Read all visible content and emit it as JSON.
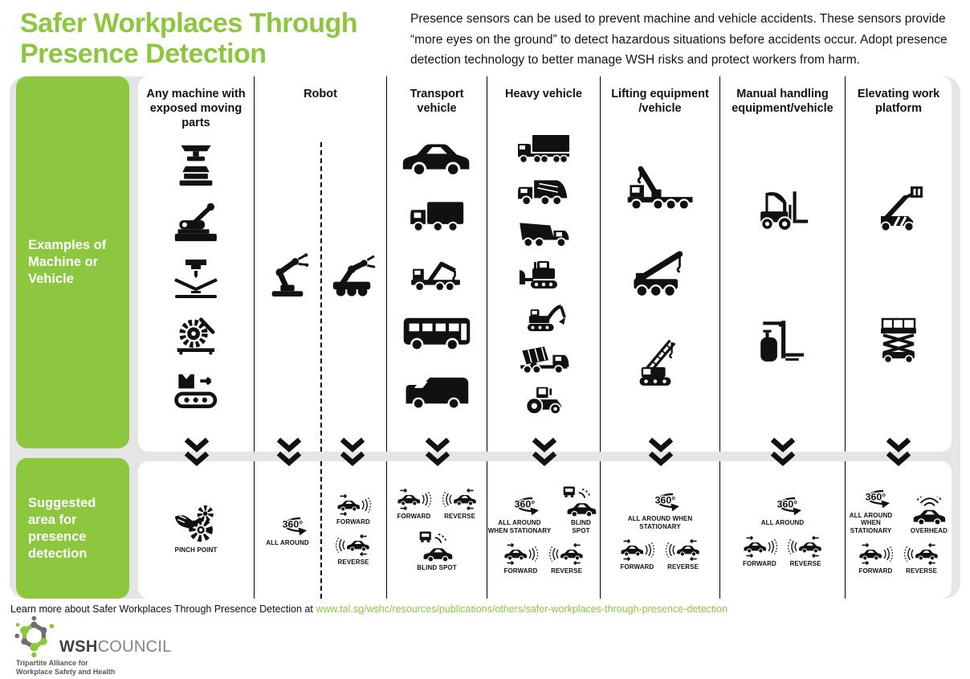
{
  "header": {
    "title_line1": "Safer Workplaces Through",
    "title_line2": "Presence Detection",
    "intro": "Presence sensors can be used to prevent machine and vehicle accidents. These sensors provide “more eyes on the ground” to detect hazardous situations before accidents occur. Adopt presence detection technology to better manage WSH risks and protect workers from harm."
  },
  "sidebar": {
    "examples_label": "Examples of Machine or Vehicle",
    "detection_label": "Suggested area for presence detection"
  },
  "columns": [
    {
      "header": "Any machine with exposed moving parts",
      "machines": [
        "press-machine-icon",
        "lever-cutter-icon",
        "press-brake-icon",
        "circular-saw-icon",
        "conveyor-icon"
      ],
      "detection": [
        [
          {
            "icon": "pinch-point-icon",
            "label": "PINCH POINT"
          }
        ]
      ]
    },
    {
      "header": "Robot",
      "split": true,
      "machines_left": [
        "robot-arm-icon"
      ],
      "machines_right": [
        "mobile-robot-icon"
      ],
      "detection_left": [
        [
          {
            "icon": "360-icon",
            "icon_text": "360°",
            "label": "ALL AROUND"
          }
        ]
      ],
      "detection_right": [
        [
          {
            "icon": "forward-icon",
            "label": "FORWARD"
          }
        ],
        [
          {
            "icon": "reverse-icon",
            "label": "REVERSE"
          }
        ]
      ]
    },
    {
      "header": "Transport vehicle",
      "machines": [
        "car-icon",
        "box-truck-icon",
        "crane-truck-icon",
        "bus-icon",
        "van-icon"
      ],
      "detection": [
        [
          {
            "icon": "forward-icon",
            "label": "FORWARD"
          },
          {
            "icon": "reverse-icon",
            "label": "REVERSE"
          }
        ],
        [
          {
            "icon": "blind-spot-icon",
            "label": "BLIND SPOT"
          }
        ]
      ]
    },
    {
      "header": "Heavy vehicle",
      "machines": [
        "semi-truck-icon",
        "garbage-truck-icon",
        "dump-truck-icon",
        "bulldozer-icon",
        "excavator-icon",
        "mixer-truck-icon",
        "tractor-icon"
      ],
      "detection": [
        [
          {
            "icon": "360-icon",
            "icon_text": "360°",
            "label": "ALL AROUND WHEN STATIONARY"
          },
          {
            "icon": "blind-spot-icon",
            "label": "BLIND SPOT"
          }
        ],
        [
          {
            "icon": "forward-icon",
            "label": "FORWARD"
          },
          {
            "icon": "reverse-icon",
            "label": "REVERSE"
          }
        ]
      ]
    },
    {
      "header": "Lifting equipment /vehicle",
      "machines": [
        "lorry-crane-icon",
        "mobile-crane-icon",
        "crawler-crane-icon"
      ],
      "detection": [
        [
          {
            "icon": "360-icon",
            "icon_text": "360°",
            "label": "ALL AROUND WHEN STATIONARY"
          }
        ],
        [
          {
            "icon": "forward-icon",
            "label": "FORWARD"
          },
          {
            "icon": "reverse-icon",
            "label": "REVERSE"
          }
        ]
      ]
    },
    {
      "header": "Manual handling equipment/vehicle",
      "machines": [
        "forklift-icon",
        "pallet-stacker-icon"
      ],
      "detection": [
        [
          {
            "icon": "360-icon",
            "icon_text": "360°",
            "label": "ALL AROUND"
          }
        ],
        [
          {
            "icon": "forward-icon",
            "label": "FORWARD"
          },
          {
            "icon": "reverse-icon",
            "label": "REVERSE"
          }
        ]
      ]
    },
    {
      "header": "Elevating work platform",
      "machines": [
        "boom-lift-icon",
        "scissor-lift-icon"
      ],
      "detection": [
        [
          {
            "icon": "360-icon",
            "icon_text": "360°",
            "label": "ALL AROUND WHEN STATIONARY"
          },
          {
            "icon": "overhead-icon",
            "label": "OVERHEAD"
          }
        ],
        [
          {
            "icon": "forward-icon",
            "label": "FORWARD"
          },
          {
            "icon": "reverse-icon",
            "label": "REVERSE"
          }
        ]
      ]
    }
  ],
  "footer": {
    "learn_more_text": "Learn more about Safer Workplaces Through Presence Detection at ",
    "learn_more_link": "www.tal.sg/wshc/resources/publications/others/safer-workplaces-through-presence-detection"
  },
  "logo": {
    "name_bold": "WSH",
    "name_light": "COUNCIL",
    "tagline_line1": "Tripartite Alliance for",
    "tagline_line2": "Workplace Safety and Health"
  },
  "colors": {
    "green": "#8DC63F",
    "panel_gray": "#E5E5E5",
    "black": "#111111",
    "logo_gray": "#6D6E71",
    "logo_dark": "#414042"
  }
}
